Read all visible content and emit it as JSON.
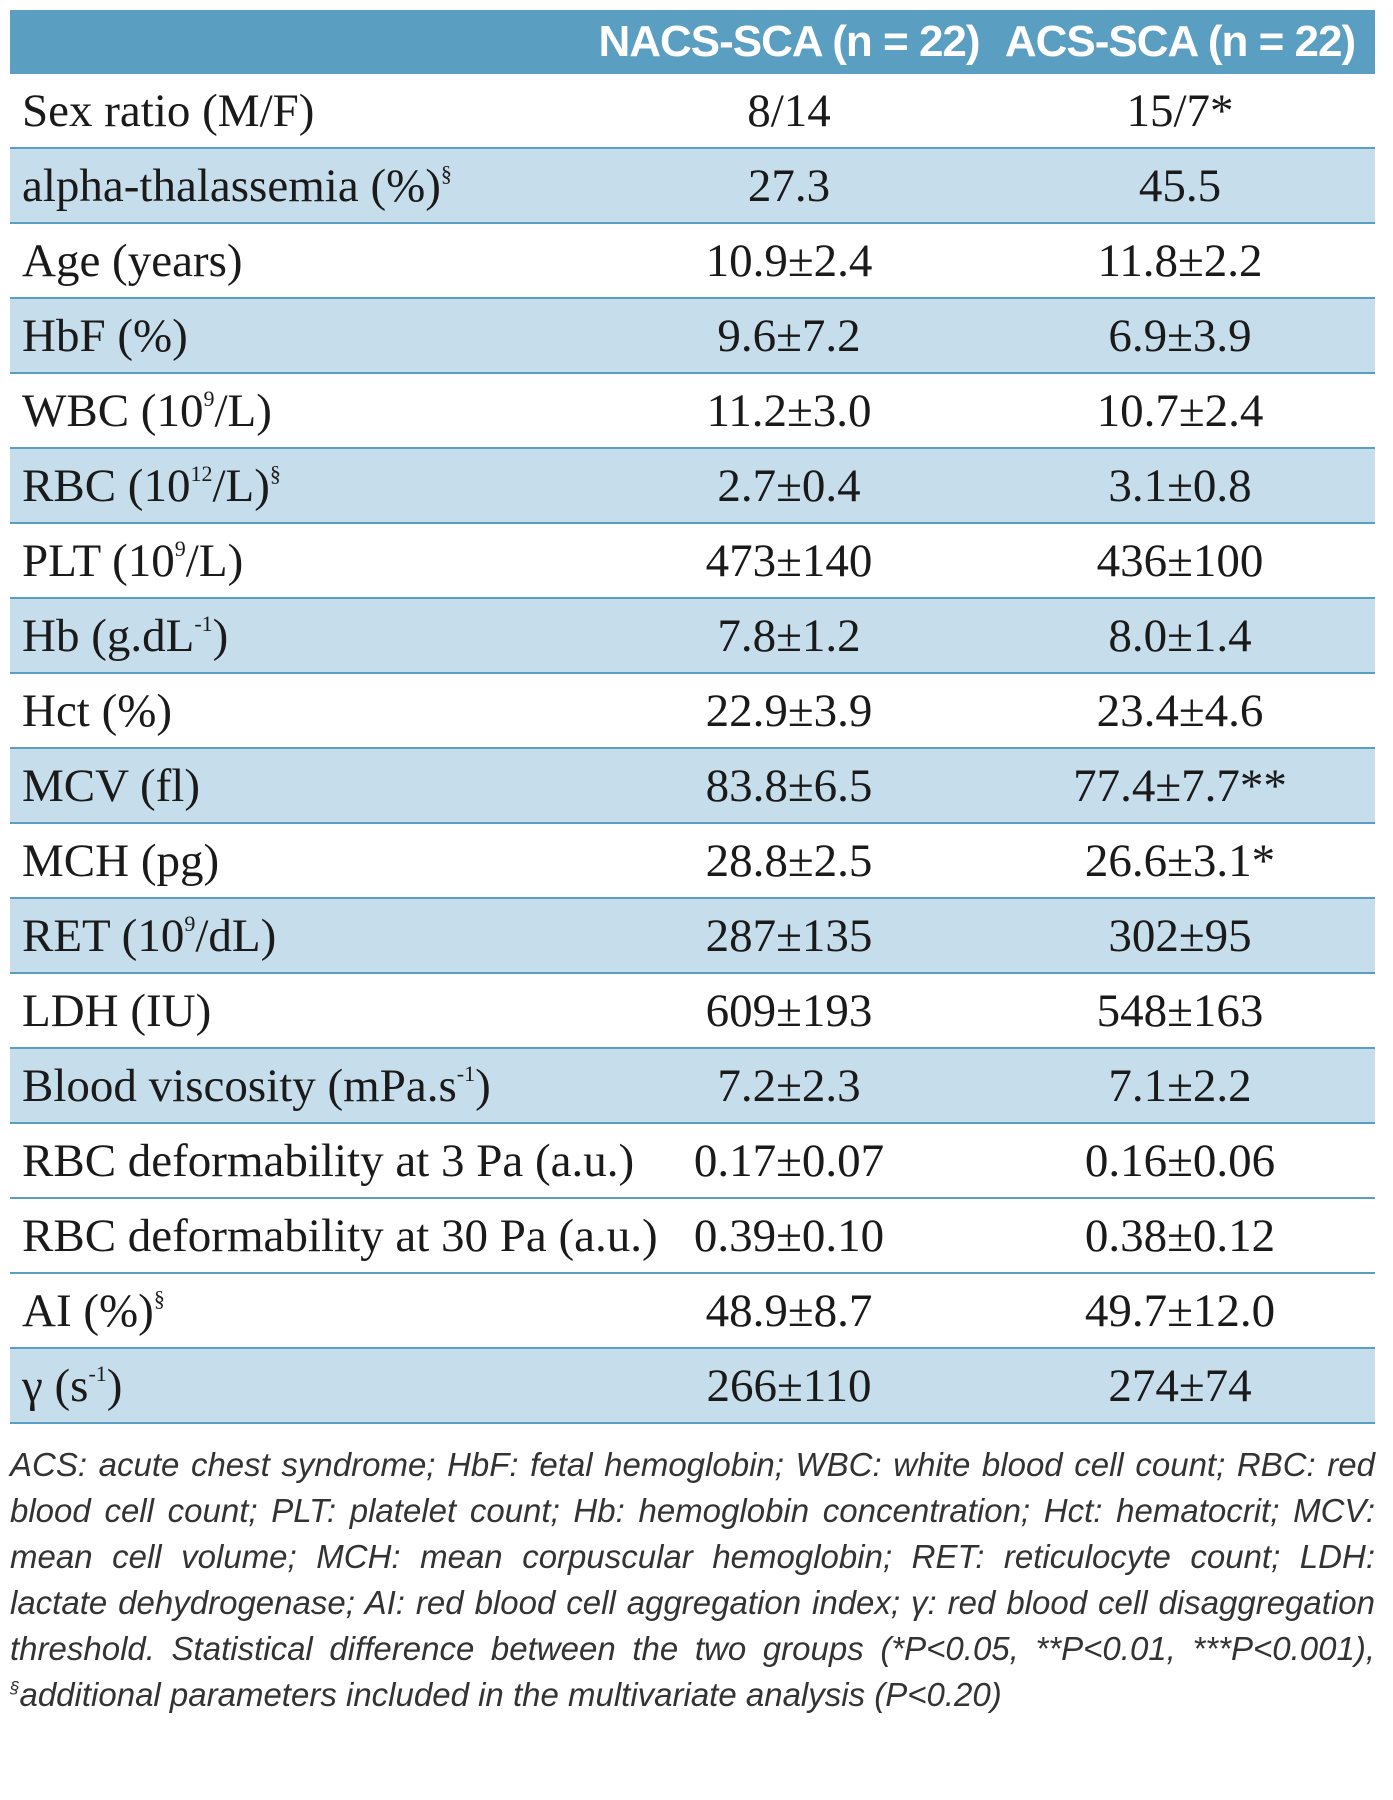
{
  "header": {
    "col1": "",
    "col2": "NACS-SCA (n = 22)",
    "col3": "ACS-SCA (n = 22)"
  },
  "rows": [
    {
      "label": "Sex ratio (M/F)",
      "nacs": "8/14",
      "acs": "15/7*"
    },
    {
      "label": "alpha-thalassemia (%)",
      "sup": "§",
      "nacs": "27.3",
      "acs": "45.5"
    },
    {
      "label": "Age (years)",
      "nacs": "10.9±2.4",
      "acs": "11.8±2.2"
    },
    {
      "label": "HbF (%)",
      "nacs": "9.6±7.2",
      "acs": "6.9±3.9"
    },
    {
      "label_pre": "WBC (10",
      "label_sup": "9",
      "label_post": "/L)",
      "nacs": "11.2±3.0",
      "acs": "10.7±2.4"
    },
    {
      "label_pre": "RBC (10",
      "label_sup": "12",
      "label_post": "/L)",
      "sup": "§",
      "nacs": "2.7±0.4",
      "acs": "3.1±0.8"
    },
    {
      "label_pre": "PLT (10",
      "label_sup": "9",
      "label_post": "/L)",
      "nacs": "473±140",
      "acs": "436±100"
    },
    {
      "label_pre": "Hb (g.dL",
      "label_sup": "-1",
      "label_post": ")",
      "nacs": "7.8±1.2",
      "acs": "8.0±1.4"
    },
    {
      "label": "Hct (%)",
      "nacs": "22.9±3.9",
      "acs": "23.4±4.6"
    },
    {
      "label": "MCV (fl)",
      "nacs": "83.8±6.5",
      "acs": "77.4±7.7**"
    },
    {
      "label": "MCH (pg)",
      "nacs": "28.8±2.5",
      "acs": "26.6±3.1*"
    },
    {
      "label_pre": "RET (10",
      "label_sup": "9",
      "label_post": "/dL)",
      "nacs": "287±135",
      "acs": "302±95"
    },
    {
      "label": "LDH (IU)",
      "nacs": "609±193",
      "acs": "548±163"
    },
    {
      "label_pre": "Blood viscosity (mPa.s",
      "label_sup": "-1",
      "label_post": ")",
      "nacs": "7.2±2.3",
      "acs": "7.1±2.2"
    },
    {
      "label": "RBC deformability at 3 Pa (a.u.)",
      "nacs": "0.17±0.07",
      "acs": "0.16±0.06"
    },
    {
      "label": "RBC deformability at 30 Pa (a.u.)",
      "nacs": "0.39±0.10",
      "acs": "0.38±0.12"
    },
    {
      "label": "AI (%)",
      "sup": "§",
      "nacs": "48.9±8.7",
      "acs": "49.7±12.0"
    },
    {
      "label_pre": "γ (s",
      "label_sup": "-1",
      "label_post": ")",
      "nacs": "266±110",
      "acs": "274±74"
    }
  ],
  "footnote": {
    "part1": "ACS: acute chest syndrome; HbF: fetal hemoglobin; WBC: white blood cell count; RBC: red blood cell count; PLT: platelet count; Hb: hemoglobin concentration; Hct: hematocrit; MCV: mean cell volume; MCH: mean corpuscular hemoglobin; RET: reticulocyte count; LDH: lactate dehydrogenase; AI: red blood cell aggregation index; γ: red blood cell disaggregation threshold. Statistical difference between the two groups (*P<0.05, **P<0.01, ***P<0.001), ",
    "sup": "§",
    "part2": "additional parameters included in the multivariate analysis (P<0.20)"
  }
}
